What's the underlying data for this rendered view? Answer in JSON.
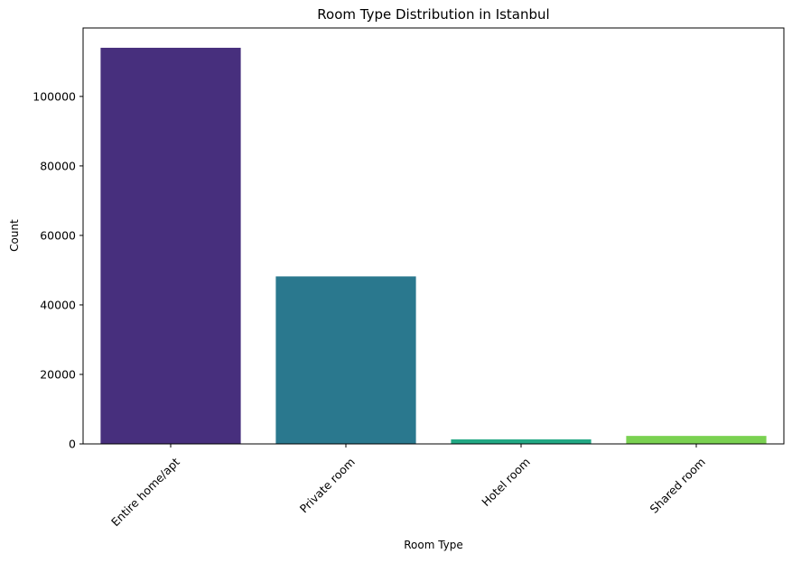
{
  "chart_data": {
    "type": "bar",
    "title": "Room Type Distribution in Istanbul",
    "xlabel": "Room Type",
    "ylabel": "Count",
    "categories": [
      "Entire home/apt",
      "Private room",
      "Hotel room",
      "Shared room"
    ],
    "values": [
      114000,
      48200,
      1300,
      2300
    ],
    "colors": [
      "#472F7D",
      "#2A788E",
      "#22A884",
      "#7AD151"
    ],
    "ylim": [
      0,
      119700
    ],
    "yticks": [
      0,
      20000,
      40000,
      60000,
      80000,
      100000
    ],
    "ytick_labels": [
      "0",
      "20000",
      "40000",
      "60000",
      "80000",
      "100000"
    ],
    "grid": false,
    "legend": "none"
  }
}
